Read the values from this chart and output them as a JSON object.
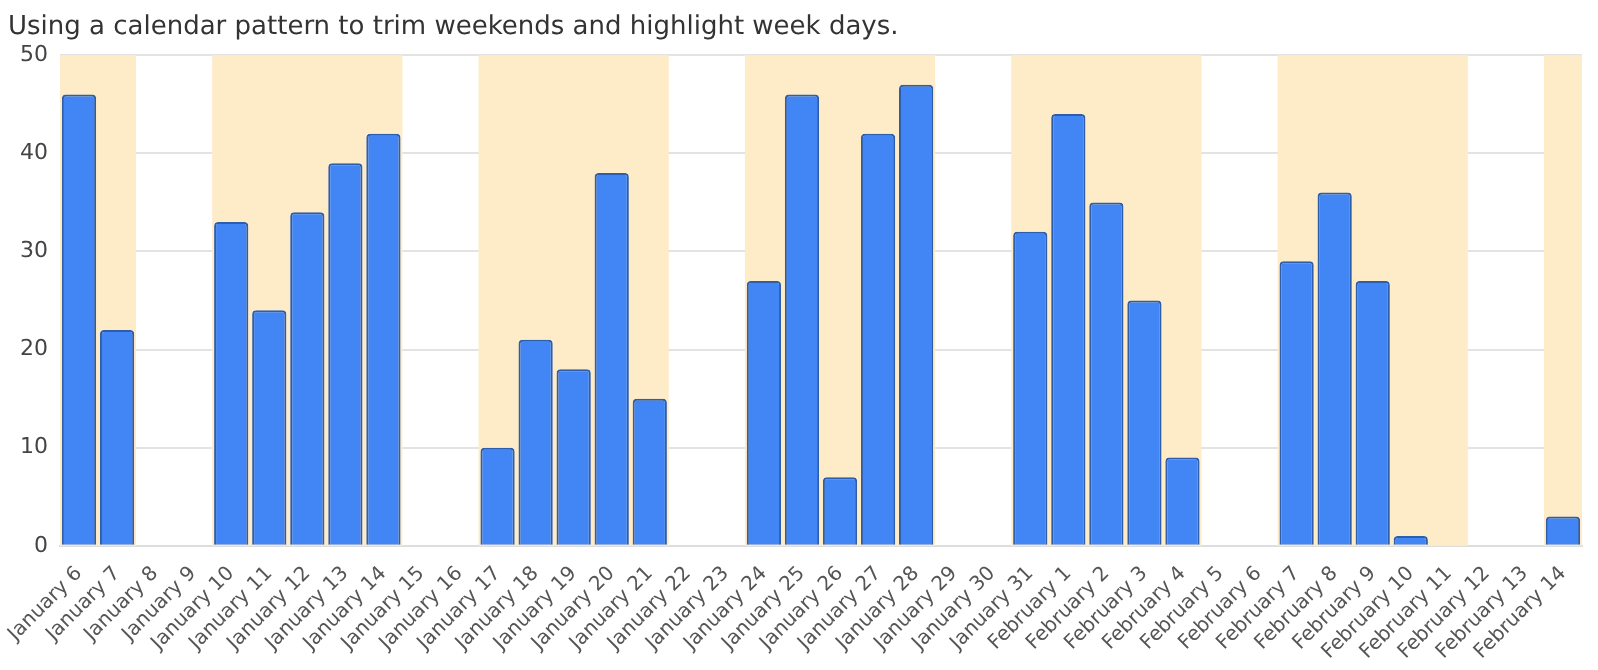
{
  "chart_data": {
    "type": "bar",
    "title": "Using a calendar pattern to trim weekends and highlight week days.",
    "categories": [
      "January 6",
      "January 7",
      "January 8",
      "January 9",
      "January 10",
      "January 11",
      "January 12",
      "January 13",
      "January 14",
      "January 15",
      "January 16",
      "January 17",
      "January 18",
      "January 19",
      "January 20",
      "January 21",
      "January 22",
      "January 23",
      "January 24",
      "January 25",
      "January 26",
      "January 27",
      "January 28",
      "January 29",
      "January 30",
      "January 31",
      "February 1",
      "February 2",
      "February 3",
      "February 4",
      "February 5",
      "February 6",
      "February 7",
      "February 8",
      "February 9",
      "February 10",
      "February 11",
      "February 12",
      "February 13",
      "February 14"
    ],
    "values": [
      46,
      22,
      null,
      null,
      33,
      24,
      34,
      39,
      42,
      null,
      null,
      10,
      21,
      18,
      38,
      15,
      null,
      null,
      27,
      46,
      7,
      42,
      47,
      null,
      null,
      32,
      44,
      35,
      25,
      9,
      null,
      null,
      29,
      36,
      27,
      1,
      null,
      null,
      null,
      3
    ],
    "color": "#4285f4",
    "ylim": [
      0,
      50
    ],
    "yticks": [
      0,
      10,
      20,
      30,
      40,
      50
    ],
    "grid": "y",
    "legend": false,
    "bands": [
      {
        "axis": "x",
        "from": "January 6",
        "to": "January 7",
        "color": "#feecc9"
      },
      {
        "axis": "x",
        "from": "January 10",
        "to": "January 14",
        "color": "#feecc9"
      },
      {
        "axis": "x",
        "from": "January 17",
        "to": "January 21",
        "color": "#feecc9"
      },
      {
        "axis": "x",
        "from": "January 24",
        "to": "January 28",
        "color": "#feecc9"
      },
      {
        "axis": "x",
        "from": "January 31",
        "to": "February 4",
        "color": "#feecc9"
      },
      {
        "axis": "x",
        "from": "February 7",
        "to": "February 11",
        "color": "#feecc9"
      },
      {
        "axis": "x",
        "from": "February 14",
        "to": "February 14",
        "color": "#feecc9"
      }
    ]
  }
}
